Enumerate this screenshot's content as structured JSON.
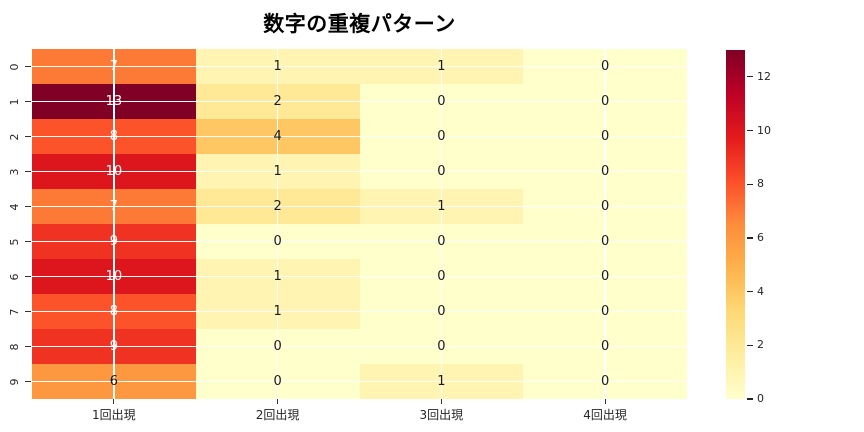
{
  "title": "数字の重複パターン",
  "colors": {
    "background": "#ffffff",
    "title_text": "#000000",
    "axis_text": "#262626",
    "tick_mark": "#333333",
    "gridline": "#ffffff",
    "annot_dark": "#1a1a1a",
    "annot_light": "#ffffff",
    "colormap_name": "YlOrRd",
    "colormap_anchors": [
      "#ffffcc",
      "#ffeda0",
      "#fed976",
      "#feb24c",
      "#fd8d3c",
      "#fc4e2a",
      "#e31a1c",
      "#bd0026",
      "#800026"
    ]
  },
  "chart_data": {
    "type": "heatmap",
    "title": "数字の重複パターン",
    "rows": [
      "0",
      "1",
      "2",
      "3",
      "4",
      "5",
      "6",
      "7",
      "8",
      "9"
    ],
    "columns": [
      "1回出現",
      "2回出現",
      "3回出現",
      "4回出現"
    ],
    "values": [
      [
        7,
        1,
        1,
        0
      ],
      [
        13,
        2,
        0,
        0
      ],
      [
        8,
        4,
        0,
        0
      ],
      [
        10,
        1,
        0,
        0
      ],
      [
        7,
        2,
        1,
        0
      ],
      [
        9,
        0,
        0,
        0
      ],
      [
        10,
        1,
        0,
        0
      ],
      [
        8,
        1,
        0,
        0
      ],
      [
        9,
        0,
        0,
        0
      ],
      [
        6,
        0,
        1,
        0
      ]
    ],
    "vmin": 0,
    "vmax": 13,
    "annotated": true,
    "grid": true,
    "colorbar": {
      "position": "right",
      "ticks": [
        0,
        2,
        4,
        6,
        8,
        10,
        12
      ]
    }
  }
}
